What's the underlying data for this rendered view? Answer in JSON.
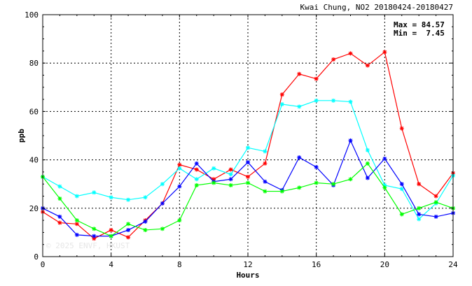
{
  "chart_data": {
    "type": "line",
    "title": "Kwai Chung, NO2 20180424-20180427",
    "xlabel": "Hours",
    "ylabel": "ppb",
    "xlim": [
      0,
      24
    ],
    "ylim": [
      0,
      100
    ],
    "xticks": [
      0,
      4,
      8,
      12,
      16,
      20,
      24
    ],
    "yticks": [
      0,
      20,
      40,
      60,
      80,
      100
    ],
    "grid": "dotted",
    "annotations": {
      "max": "Max = 84.57",
      "min": "Min =  7.45"
    },
    "watermark": "© 2025  ENVF, HKUST",
    "x": [
      0,
      1,
      2,
      3,
      4,
      5,
      6,
      7,
      8,
      9,
      10,
      11,
      12,
      13,
      14,
      15,
      16,
      17,
      18,
      19,
      20,
      21,
      22,
      23,
      24
    ],
    "series": [
      {
        "color": "#ff0000",
        "marker": "asterisk",
        "values": [
          18.5,
          14,
          13.5,
          7.45,
          11,
          8,
          15,
          22,
          38,
          36,
          32,
          36,
          33,
          38.5,
          67,
          75.5,
          73.5,
          81.5,
          84,
          79,
          84.57,
          53,
          30,
          25,
          34.5
        ]
      },
      {
        "color": "#00ffff",
        "marker": "asterisk",
        "values": [
          33,
          29,
          25,
          26.5,
          24.5,
          23.5,
          24.5,
          30,
          36.5,
          32,
          36.5,
          34,
          45,
          43.5,
          63,
          62,
          64.5,
          64.5,
          64,
          44,
          29.5,
          28,
          15.5,
          22,
          33.5
        ]
      },
      {
        "color": "#0000ff",
        "marker": "asterisk",
        "values": [
          20,
          16.5,
          9,
          8.5,
          8.5,
          11,
          14.5,
          22,
          29,
          38.5,
          31,
          32,
          39,
          31,
          27.5,
          41,
          37,
          29.5,
          48,
          32.5,
          40.5,
          30,
          17.5,
          16.5,
          18
        ]
      },
      {
        "color": "#00ff00",
        "marker": "asterisk",
        "values": [
          33,
          24,
          15,
          11.5,
          8.5,
          13.5,
          11,
          11.5,
          15,
          29.5,
          30.5,
          29.5,
          30.5,
          27,
          27,
          28.5,
          30.5,
          30,
          32,
          38.5,
          28.5,
          17.5,
          20,
          22.5,
          20
        ]
      }
    ]
  }
}
